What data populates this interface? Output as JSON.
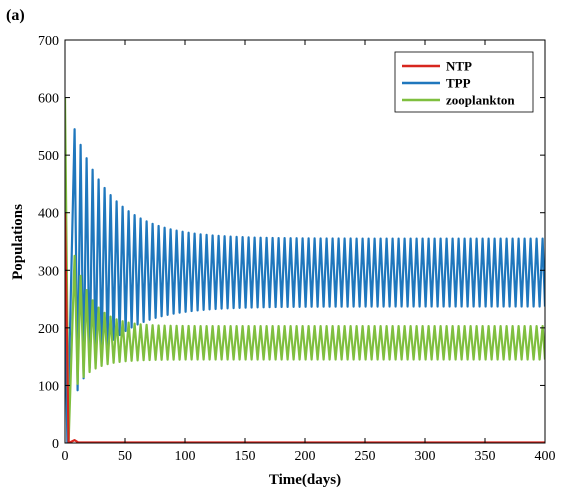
{
  "chart_data": {
    "type": "line",
    "panel_label": "(a)",
    "title": "",
    "xlabel": "Time(days)",
    "ylabel": "Populations",
    "xlim": [
      0,
      400
    ],
    "ylim": [
      0,
      700
    ],
    "xticks": [
      0,
      50,
      100,
      150,
      200,
      250,
      300,
      350,
      400
    ],
    "yticks": [
      0,
      100,
      200,
      300,
      400,
      500,
      600,
      700
    ],
    "grid": false,
    "legend_position": "top-right",
    "series": [
      {
        "name": "NTP",
        "color": "#d7261e",
        "shape": "decay",
        "start": 400,
        "transient_end": 8,
        "bump_t": 8,
        "bump_value": 5,
        "steady_value": 1
      },
      {
        "name": "TPP",
        "color": "#1f77bd",
        "shape": "oscillation",
        "start": 250,
        "initial_drop_t": 2,
        "initial_drop_value": 0,
        "first_peak_t": 8,
        "first_peak_value": 545,
        "period_days": 5,
        "steady_max": 355,
        "steady_min": 237,
        "settle_days": 130,
        "start_min": 80
      },
      {
        "name": "zooplankton",
        "color": "#7fbf3f",
        "shape": "oscillation",
        "start": 600,
        "initial_drop_t": 3,
        "initial_drop_value": 0,
        "first_peak_t": 8,
        "first_peak_value": 325,
        "period_days": 5,
        "steady_max": 203,
        "steady_min": 145,
        "settle_days": 60,
        "start_min": 95
      }
    ]
  }
}
